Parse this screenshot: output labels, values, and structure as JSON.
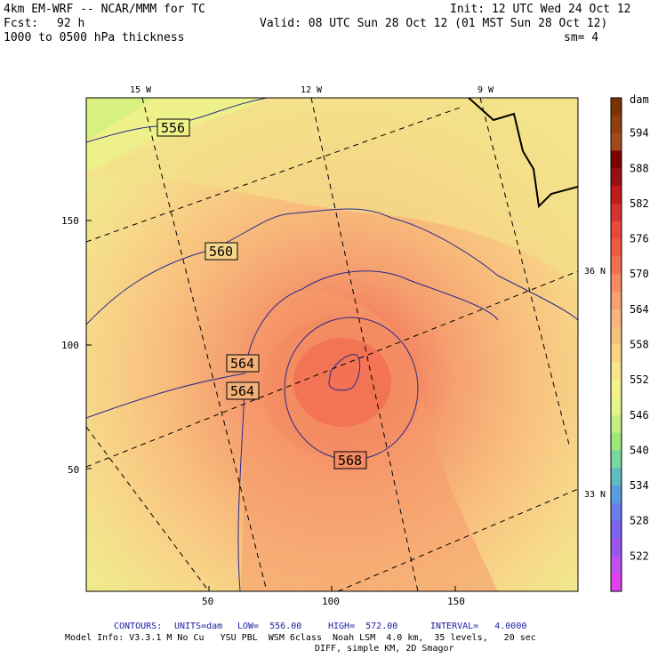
{
  "header": {
    "model": "4km EM-WRF -- NCAR/MMM for TC",
    "init": "Init: 12 UTC Wed 24 Oct 12",
    "fcst_label": "Fcst:",
    "fcst_value": "92 h",
    "valid": "Valid: 08 UTC Sun 28 Oct 12 (01 MST Sun 28 Oct 12)",
    "field": "1000 to 0500 hPa thickness",
    "smoothing": "sm= 4"
  },
  "map": {
    "lon_labels": [
      "15 W",
      "12 W",
      "9 W"
    ],
    "lat_labels": [
      "36 N",
      "33 N"
    ],
    "x_ticks": [
      "50",
      "100",
      "150"
    ],
    "y_ticks": [
      "150",
      "100",
      "50"
    ],
    "contour_labels": [
      "556",
      "560",
      "564",
      "564",
      "568"
    ]
  },
  "colorbar": {
    "unit": "dam",
    "labels": [
      "594",
      "588",
      "582",
      "576",
      "570",
      "564",
      "558",
      "552",
      "546",
      "540",
      "534",
      "528",
      "522"
    ],
    "colors": [
      "#7a3300",
      "#8f3f10",
      "#a34a1a",
      "#7a0000",
      "#9a0f0f",
      "#c21a1a",
      "#d93030",
      "#e84a3a",
      "#f05a40",
      "#f46e50",
      "#f78a62",
      "#f7a070",
      "#f8b47e",
      "#f7c27c",
      "#f8d484",
      "#f8e48c",
      "#f4f08a",
      "#e6f58a",
      "#c8f080",
      "#9ee87a",
      "#78d8a0",
      "#60bcc0",
      "#5a9ce0",
      "#6a7ef0",
      "#7c62f0",
      "#9a55f0",
      "#c050f0",
      "#e040f0"
    ]
  },
  "footer": {
    "contours_prefix": "CONTOURS:",
    "units": "UNITS=dam",
    "low": "LOW=  556.00",
    "high": "HIGH=  572.00",
    "interval": "INTERVAL=   4.0000",
    "model_info_1": "Model Info: V3.3.1 M No Cu   YSU PBL  WSM 6class  Noah LSM  4.0 km,  35 levels,   20 sec",
    "model_info_2": "DIFF, simple KM, 2D Smagor"
  }
}
